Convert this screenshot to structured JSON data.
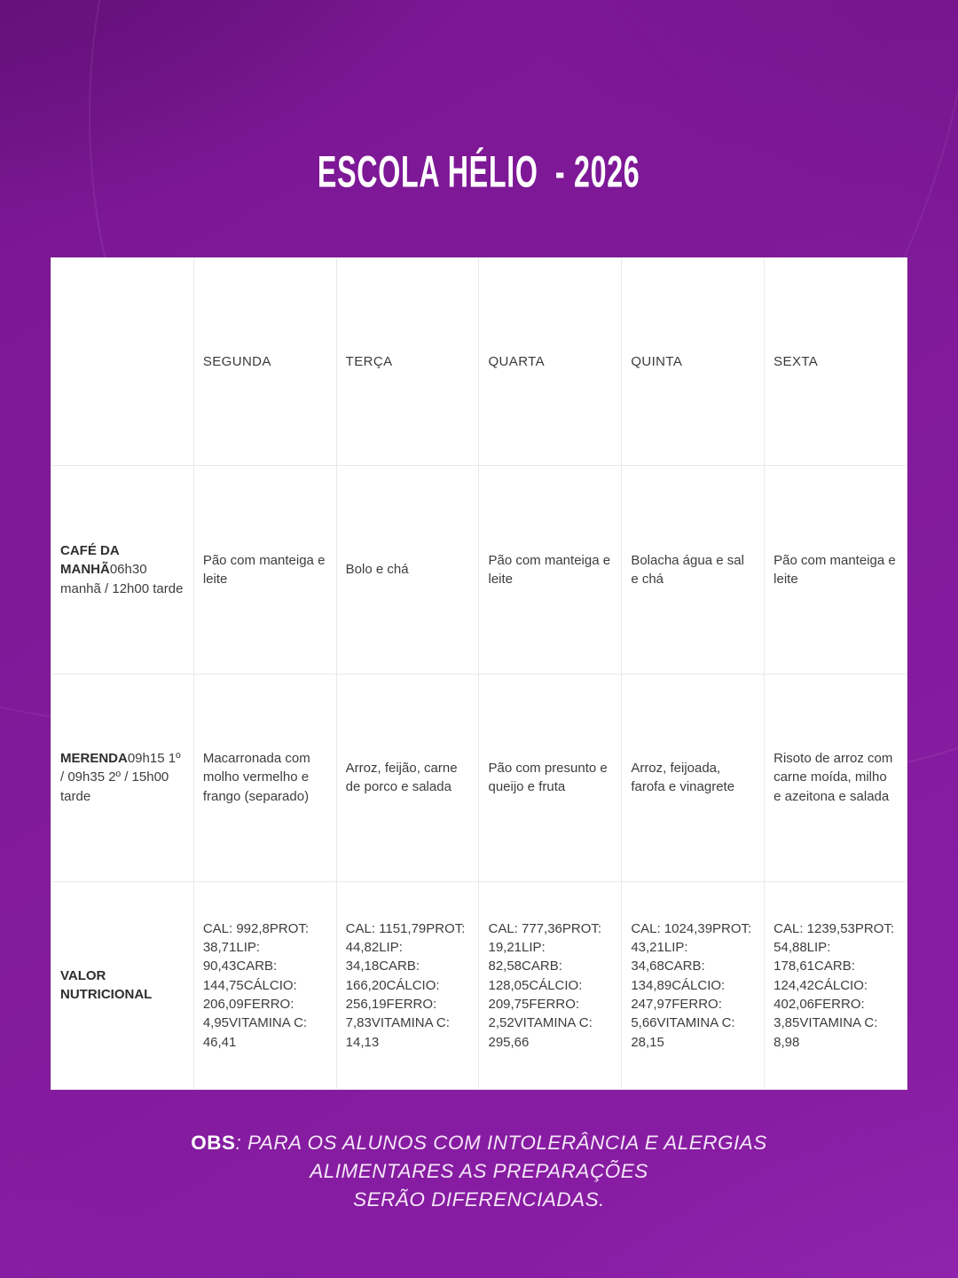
{
  "theme": {
    "background_purple": "#821a9b",
    "background_dark_purple": "#5c0e73",
    "table_background": "#ffffff",
    "table_inner_border": "#e9e9e9",
    "table_text": "#3d3d3d",
    "title_color": "#ffffff",
    "note_color": "#f4e6f8"
  },
  "title": "ESCOLA HÉLIO  - 2026",
  "menu_table": {
    "corner_label": "",
    "day_headers": [
      "SEGUNDA",
      "TERÇA",
      "QUARTA",
      "QUINTA",
      "SEXTA"
    ],
    "rows": [
      {
        "label": "CAFÉ DA MANHÃ",
        "schedule": "06h30 manhã / 12h00 tarde",
        "cells": [
          "Pão com manteiga e leite",
          "Bolo e chá",
          "Pão com manteiga e leite",
          "Bolacha água e sal e chá",
          "Pão com manteiga e leite"
        ]
      },
      {
        "label": "MERENDA",
        "schedule": "09h15 1º / 09h35 2º / 15h00 tarde",
        "cells": [
          "Macarronada com molho vermelho e frango (separado)",
          "Arroz, feijão, carne de porco e salada",
          "Pão com presunto e queijo e fruta",
          "Arroz, feijoada, farofa e vinagrete",
          "Risoto de arroz com carne moída, milho e azeitona e salada"
        ]
      },
      {
        "label": "VALOR NUTRICIONAL",
        "schedule": "",
        "cells": [
          "CAL: 992,8PROT: 38,71LIP: 90,43CARB: 144,75CÁLCIO: 206,09FERRO: 4,95VITAMINA C: 46,41",
          "CAL: 1151,79PROT: 44,82LIP: 34,18CARB: 166,20CÁLCIO: 256,19FERRO: 7,83VITAMINA C: 14,13",
          "CAL: 777,36PROT: 19,21LIP: 82,58CARB: 128,05CÁLCIO: 209,75FERRO: 2,52VITAMINA C: 295,66",
          "CAL: 1024,39PROT: 43,21LIP: 34,68CARB: 134,89CÁLCIO: 247,97FERRO: 5,66VITAMINA C: 28,15",
          "CAL: 1239,53PROT: 54,88LIP: 178,61CARB: 124,42CÁLCIO: 402,06FERRO: 3,85VITAMINA C: 8,98"
        ]
      }
    ]
  },
  "footnote": {
    "label": "OBS",
    "line1": ": PARA OS ALUNOS COM INTOLERÂNCIA E ALERGIAS",
    "line2": "ALIMENTARES AS PREPARAÇÕES",
    "line3": "SERÃO DIFERENCIADAS."
  }
}
